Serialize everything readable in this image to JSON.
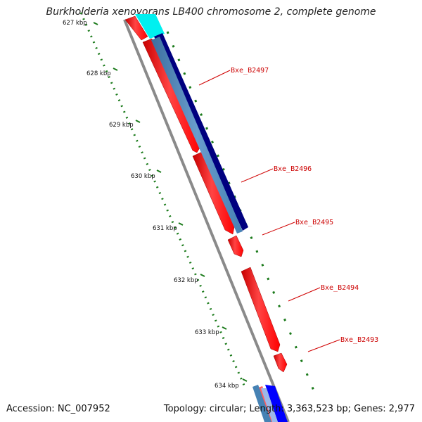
{
  "title": "Burkholderia xenovorans LB400 chromosome 2, complete genome",
  "accession": "Accession: NC_007952",
  "summary": "Topology: circular; Length: 3,363,523 bp; Genes: 2,977",
  "scale": {
    "labels": [
      "627 kbp",
      "628 kbp",
      "629 kbp",
      "630 kbp",
      "631 kbp",
      "632 kbp",
      "633 kbp",
      "634 kbp"
    ]
  },
  "genes": [
    {
      "name": "Bxe_B2497",
      "color": "#ff0000"
    },
    {
      "name": "Bxe_B2496",
      "color": "#ff0000"
    },
    {
      "name": "Bxe_B2495",
      "color": "#ff0000"
    },
    {
      "name": "Bxe_B2494",
      "color": "#ff0000"
    },
    {
      "name": "Bxe_B2493",
      "color": "#ff0000"
    }
  ],
  "colors": {
    "gene_red": "#ff0000",
    "navy_track": "#00007f",
    "steel_track": "#4682b4",
    "cyan_feature": "#00ffff",
    "blue_feature": "#0000ff",
    "backbone": "#808080",
    "tick_green": "#006400"
  }
}
